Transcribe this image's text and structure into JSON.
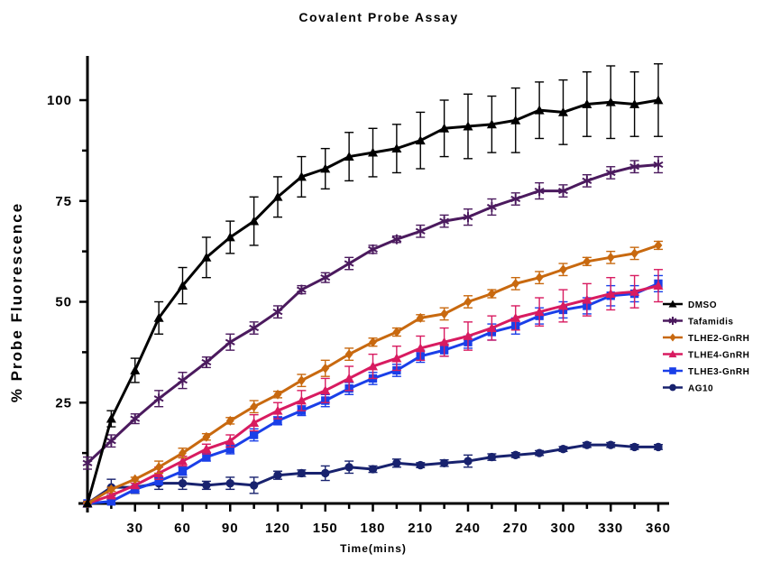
{
  "chart_data": {
    "type": "line",
    "title": "Covalent Probe Assay",
    "xlabel": "Time(mins)",
    "ylabel": "% Probe Fluorescence",
    "xlim": [
      0,
      370
    ],
    "ylim": [
      0,
      110
    ],
    "x_ticks": [
      30,
      60,
      90,
      120,
      150,
      180,
      210,
      240,
      270,
      300,
      330,
      360
    ],
    "y_ticks": [
      25,
      50,
      75,
      100
    ],
    "legend_position": "right",
    "grid": false,
    "x": [
      0,
      15,
      30,
      45,
      60,
      75,
      90,
      105,
      120,
      135,
      150,
      165,
      180,
      195,
      210,
      225,
      240,
      255,
      270,
      285,
      300,
      315,
      330,
      345,
      360
    ],
    "series": [
      {
        "name": "DMSO",
        "color": "#000000",
        "marker": "triangle",
        "values": [
          0,
          21,
          33,
          46,
          54,
          61,
          66,
          70,
          76,
          81,
          83,
          86,
          87,
          88,
          90,
          93,
          93.5,
          94,
          95,
          97.5,
          97,
          99,
          99.5,
          99,
          100
        ],
        "errors": [
          0,
          2,
          3,
          4,
          4.5,
          5,
          4,
          6,
          5,
          5,
          5,
          6,
          6,
          6,
          7,
          7,
          8,
          7,
          8,
          7,
          8,
          8,
          9,
          8,
          9
        ]
      },
      {
        "name": "Tafamidis",
        "color": "#4b1a5e",
        "marker": "star",
        "values": [
          10,
          15.5,
          21,
          26,
          30.5,
          35,
          40,
          43.5,
          47.5,
          53,
          56,
          59.5,
          63,
          65.5,
          67.5,
          70,
          71,
          73.5,
          75.5,
          77.5,
          77.5,
          80,
          82,
          83.5,
          84
        ],
        "errors": [
          1.5,
          1.5,
          1.2,
          2,
          2,
          1.3,
          2,
          1.5,
          1.5,
          1,
          1.2,
          1.5,
          1,
          0.8,
          1.5,
          1.5,
          2,
          2,
          1.5,
          2,
          1.5,
          1.5,
          1.5,
          1.5,
          2
        ]
      },
      {
        "name": "TLHE2-GnRH",
        "color": "#c8690f",
        "marker": "diamond",
        "values": [
          0,
          3.5,
          6,
          9,
          12.5,
          16.5,
          20.5,
          24,
          27,
          30.5,
          33.5,
          37,
          40,
          42.5,
          46,
          47,
          50,
          52,
          54.5,
          56,
          58,
          60,
          61,
          62,
          64
        ],
        "errors": [
          0.5,
          0.5,
          0.5,
          1.5,
          1.2,
          0.8,
          0.8,
          1.5,
          0.8,
          1.5,
          2,
          1.5,
          1,
          1,
          0.8,
          1.5,
          1.5,
          1,
          1.5,
          1.5,
          1.5,
          1,
          1.5,
          1.5,
          1
        ]
      },
      {
        "name": "TLHE4-GnRH",
        "color": "#d81b60",
        "marker": "triangle",
        "values": [
          0,
          2,
          4.5,
          7.5,
          10.5,
          13.5,
          15.5,
          20,
          23,
          25.5,
          28,
          31,
          34,
          36,
          38.5,
          40,
          41.5,
          43.5,
          46,
          47.5,
          49,
          50.5,
          52,
          52.5,
          54
        ],
        "errors": [
          0.5,
          0.5,
          0.5,
          1.5,
          1.2,
          1.2,
          1.5,
          2,
          2,
          2.5,
          3,
          3,
          3,
          3,
          3,
          3.5,
          3.5,
          3,
          3,
          3.5,
          4,
          4,
          4,
          4,
          4
        ]
      },
      {
        "name": "TLHE3-GnRH",
        "color": "#1a3fe8",
        "marker": "square",
        "values": [
          0,
          0.5,
          3.5,
          5.5,
          8,
          11.5,
          13.5,
          17,
          20.5,
          23,
          25.5,
          28.5,
          31,
          33,
          36.5,
          38,
          40,
          42.5,
          44,
          46.5,
          48,
          49,
          51.5,
          52,
          54.5
        ],
        "errors": [
          0,
          0.5,
          0.5,
          0.8,
          1,
          1,
          1.2,
          1.5,
          1,
          1.2,
          1.5,
          1.5,
          1.5,
          1.5,
          1.5,
          1.5,
          1.5,
          2,
          2,
          2,
          2,
          2,
          2.5,
          2,
          2
        ]
      },
      {
        "name": "AG10",
        "color": "#18226e",
        "marker": "circle",
        "values": [
          0,
          4,
          4,
          5,
          5,
          4.5,
          5,
          4.5,
          7,
          7.5,
          7.5,
          9,
          8.5,
          10,
          9.5,
          10,
          10.5,
          11.5,
          12,
          12.5,
          13.5,
          14.5,
          14.5,
          14,
          14
        ],
        "errors": [
          0,
          2,
          1.5,
          1.5,
          1.5,
          1,
          1.5,
          2,
          1,
          0.8,
          1.8,
          1.5,
          0.8,
          1,
          0.6,
          0.8,
          1.5,
          0.8,
          0.6,
          0.6,
          0.6,
          0.6,
          0.6,
          0.6,
          0.6
        ]
      }
    ]
  }
}
